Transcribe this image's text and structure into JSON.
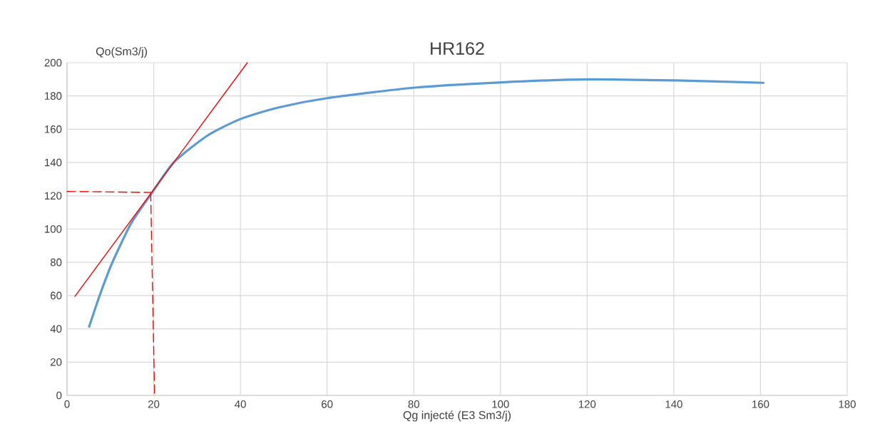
{
  "chart_data": {
    "type": "line",
    "title": "HR162",
    "xlabel": "Qg injecté (E3 Sm3/j)",
    "ylabel": "Qo(Sm3/j)",
    "xlim": [
      0,
      180
    ],
    "xticks": [
      0,
      20,
      40,
      60,
      80,
      100,
      120,
      140,
      160,
      180
    ],
    "ylim": [
      0,
      200
    ],
    "yticks": [
      0,
      20,
      40,
      60,
      80,
      100,
      120,
      140,
      160,
      180,
      200
    ],
    "grid": true,
    "marker": "none",
    "series": [
      {
        "color": "#5b9bd5",
        "line_style": "solid",
        "x": [
          5.1,
          7.6,
          10.3,
          14.7,
          19.4,
          24.6,
          32.3,
          39.9,
          48.7,
          60,
          80.2,
          100.3,
          120.4,
          140.5,
          160.7
        ],
        "values": [
          41.3,
          60.6,
          79,
          103,
          121,
          140,
          156,
          166,
          173,
          178.7,
          185,
          188.2,
          190,
          189.3,
          187.9
        ]
      },
      {
        "color": "#ff0000",
        "line_style": "solid",
        "x": [
          1.8,
          41.6
        ],
        "values": [
          59.5,
          200
        ]
      },
      {
        "color": "#ff0000",
        "line_style": "dashed",
        "x": [
          0,
          19.3
        ],
        "values": [
          122.6,
          122
        ]
      },
      {
        "color": "#ff0000",
        "line_style": "dashed",
        "x": [
          19.3,
          20.2
        ],
        "values": [
          122,
          0
        ]
      }
    ]
  }
}
